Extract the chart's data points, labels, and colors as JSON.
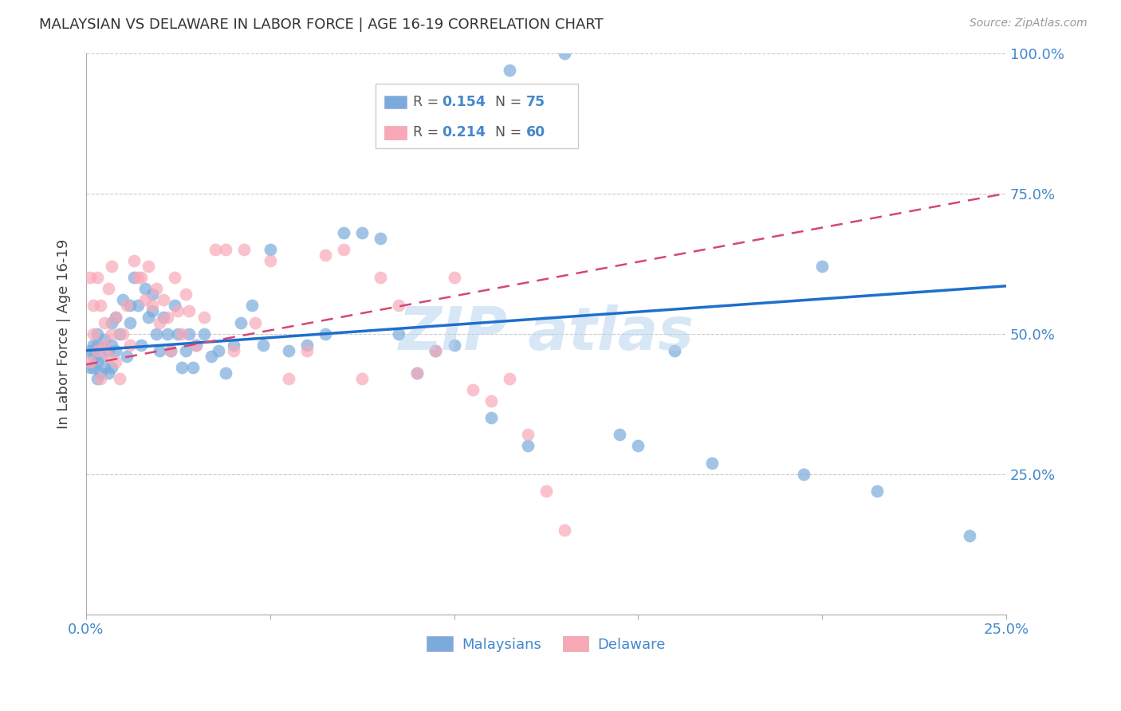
{
  "title": "MALAYSIAN VS DELAWARE IN LABOR FORCE | AGE 16-19 CORRELATION CHART",
  "source": "Source: ZipAtlas.com",
  "ylabel": "In Labor Force | Age 16-19",
  "xlim": [
    0.0,
    0.25
  ],
  "ylim": [
    0.0,
    1.0
  ],
  "blue_color": "#7AABDC",
  "pink_color": "#F9A8B8",
  "blue_line_color": "#1F6FCC",
  "pink_line_color": "#D44875",
  "axis_label_color": "#4488CC",
  "title_color": "#333333",
  "grid_color": "#CCCCCC",
  "watermark_color": "#B8D4EE",
  "blue_line_x0": 0.0,
  "blue_line_y0": 0.47,
  "blue_line_x1": 0.25,
  "blue_line_y1": 0.585,
  "pink_line_x0": 0.0,
  "pink_line_y0": 0.445,
  "pink_line_x1": 0.25,
  "pink_line_y1": 0.75,
  "malaysians_x": [
    0.001,
    0.001,
    0.002,
    0.002,
    0.002,
    0.003,
    0.003,
    0.003,
    0.003,
    0.004,
    0.004,
    0.005,
    0.005,
    0.006,
    0.006,
    0.007,
    0.007,
    0.007,
    0.008,
    0.008,
    0.009,
    0.01,
    0.011,
    0.012,
    0.012,
    0.013,
    0.014,
    0.015,
    0.016,
    0.017,
    0.018,
    0.018,
    0.019,
    0.02,
    0.021,
    0.022,
    0.023,
    0.024,
    0.025,
    0.026,
    0.027,
    0.028,
    0.029,
    0.03,
    0.032,
    0.034,
    0.036,
    0.038,
    0.04,
    0.042,
    0.045,
    0.048,
    0.05,
    0.055,
    0.06,
    0.065,
    0.07,
    0.075,
    0.08,
    0.085,
    0.09,
    0.095,
    0.1,
    0.11,
    0.115,
    0.12,
    0.13,
    0.145,
    0.15,
    0.16,
    0.17,
    0.195,
    0.2,
    0.215,
    0.24
  ],
  "malaysians_y": [
    0.47,
    0.44,
    0.46,
    0.44,
    0.48,
    0.48,
    0.45,
    0.5,
    0.42,
    0.46,
    0.43,
    0.49,
    0.44,
    0.47,
    0.43,
    0.52,
    0.48,
    0.44,
    0.53,
    0.47,
    0.5,
    0.56,
    0.46,
    0.55,
    0.52,
    0.6,
    0.55,
    0.48,
    0.58,
    0.53,
    0.57,
    0.54,
    0.5,
    0.47,
    0.53,
    0.5,
    0.47,
    0.55,
    0.5,
    0.44,
    0.47,
    0.5,
    0.44,
    0.48,
    0.5,
    0.46,
    0.47,
    0.43,
    0.48,
    0.52,
    0.55,
    0.48,
    0.65,
    0.47,
    0.48,
    0.5,
    0.68,
    0.68,
    0.67,
    0.5,
    0.43,
    0.47,
    0.48,
    0.35,
    0.97,
    0.3,
    1.0,
    0.32,
    0.3,
    0.47,
    0.27,
    0.25,
    0.62,
    0.22,
    0.14
  ],
  "delaware_x": [
    0.001,
    0.001,
    0.002,
    0.002,
    0.003,
    0.003,
    0.004,
    0.004,
    0.005,
    0.005,
    0.006,
    0.006,
    0.007,
    0.007,
    0.008,
    0.008,
    0.009,
    0.01,
    0.011,
    0.012,
    0.013,
    0.014,
    0.015,
    0.016,
    0.017,
    0.018,
    0.019,
    0.02,
    0.021,
    0.022,
    0.023,
    0.024,
    0.025,
    0.026,
    0.027,
    0.028,
    0.03,
    0.032,
    0.035,
    0.038,
    0.04,
    0.043,
    0.046,
    0.05,
    0.055,
    0.06,
    0.065,
    0.07,
    0.075,
    0.08,
    0.085,
    0.09,
    0.095,
    0.1,
    0.105,
    0.11,
    0.115,
    0.12,
    0.125,
    0.13
  ],
  "delaware_y": [
    0.45,
    0.6,
    0.5,
    0.55,
    0.47,
    0.6,
    0.42,
    0.55,
    0.48,
    0.52,
    0.46,
    0.58,
    0.5,
    0.62,
    0.45,
    0.53,
    0.42,
    0.5,
    0.55,
    0.48,
    0.63,
    0.6,
    0.6,
    0.56,
    0.62,
    0.55,
    0.58,
    0.52,
    0.56,
    0.53,
    0.47,
    0.6,
    0.54,
    0.5,
    0.57,
    0.54,
    0.48,
    0.53,
    0.65,
    0.65,
    0.47,
    0.65,
    0.52,
    0.63,
    0.42,
    0.47,
    0.64,
    0.65,
    0.42,
    0.6,
    0.55,
    0.43,
    0.47,
    0.6,
    0.4,
    0.38,
    0.42,
    0.32,
    0.22,
    0.15
  ]
}
